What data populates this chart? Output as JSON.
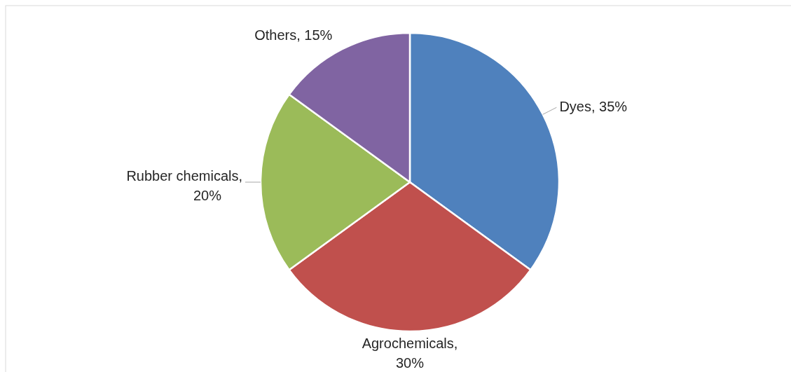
{
  "chart_data": {
    "type": "pie",
    "categories": [
      "Dyes",
      "Agrochemicals",
      "Rubber chemicals",
      "Others"
    ],
    "values": [
      35,
      30,
      20,
      15
    ],
    "colors": [
      "#4f81bd",
      "#c0504d",
      "#9bbb59",
      "#8064a2"
    ],
    "value_labels": [
      ", 35%",
      ", 30%",
      ", 20%",
      ", 15%"
    ]
  }
}
